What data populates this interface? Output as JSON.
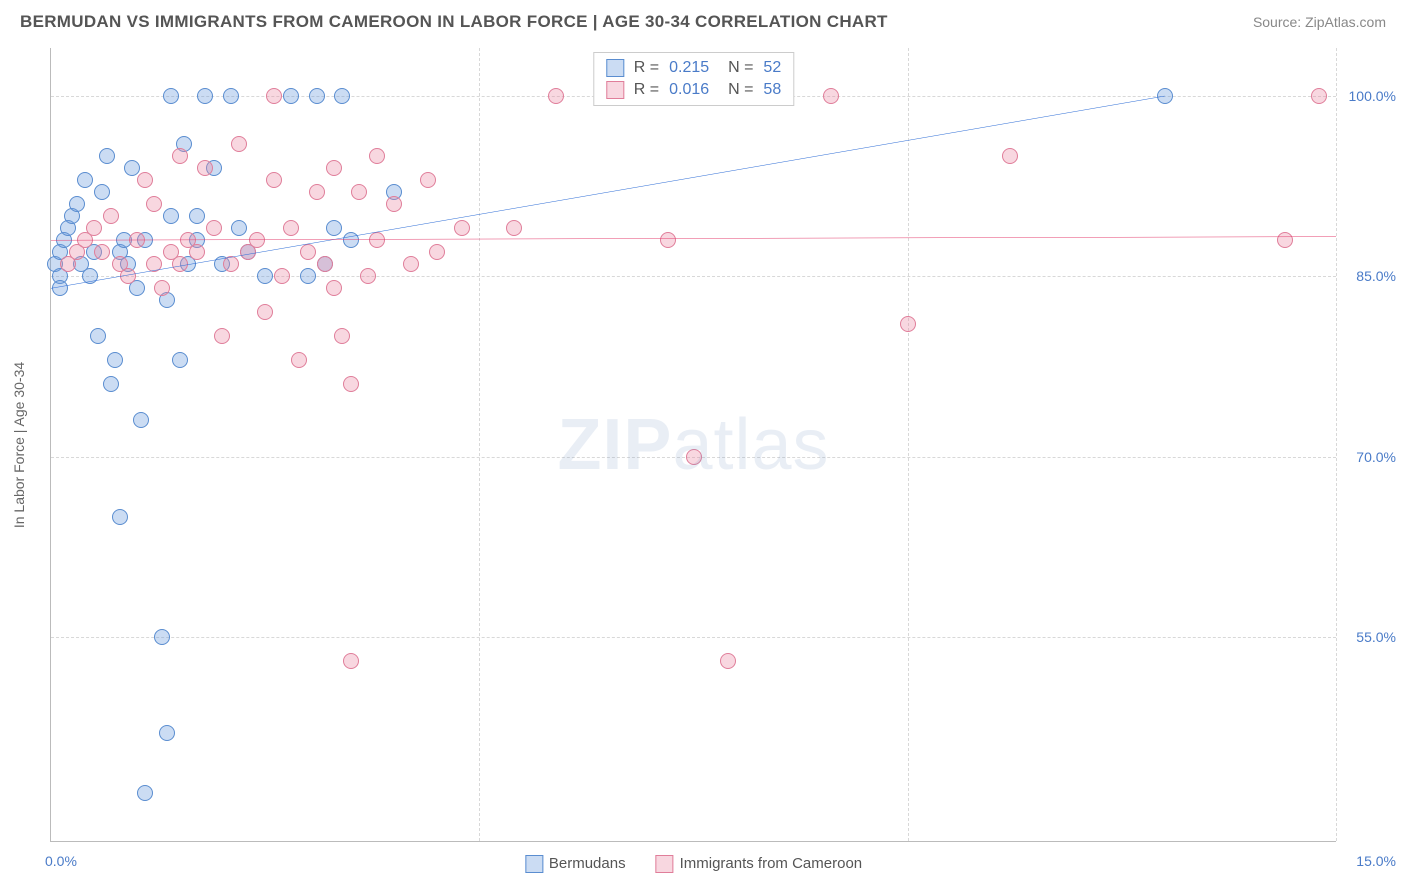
{
  "header": {
    "title": "BERMUDAN VS IMMIGRANTS FROM CAMEROON IN LABOR FORCE | AGE 30-34 CORRELATION CHART",
    "source": "Source: ZipAtlas.com"
  },
  "chart": {
    "type": "scatter",
    "yaxis_label": "In Labor Force | Age 30-34",
    "watermark": "ZIPatlas",
    "background_color": "#ffffff",
    "grid_color": "#d8d8d8",
    "axis_color": "#bbbbbb",
    "tick_label_color": "#4a7bc8",
    "xlim": [
      0,
      15
    ],
    "ylim": [
      38,
      104
    ],
    "xticks": [
      {
        "value": 0,
        "label": "0.0%"
      },
      {
        "value": 5,
        "label": ""
      },
      {
        "value": 10,
        "label": ""
      },
      {
        "value": 15,
        "label": "15.0%"
      }
    ],
    "yticks": [
      {
        "value": 100,
        "label": "100.0%"
      },
      {
        "value": 85,
        "label": "85.0%"
      },
      {
        "value": 70,
        "label": "70.0%"
      },
      {
        "value": 55,
        "label": "55.0%"
      }
    ],
    "series": [
      {
        "name": "Bermudans",
        "fill_color": "rgba(105,155,220,0.35)",
        "stroke_color": "#5a8dd0",
        "line_color": "#2b6bd6",
        "line_width": 2,
        "marker_radius": 8,
        "R": "0.215",
        "N": "52",
        "regression": {
          "x1": 0,
          "y1": 84,
          "x2": 13.0,
          "y2": 100
        },
        "points": [
          {
            "x": 0.05,
            "y": 86
          },
          {
            "x": 0.1,
            "y": 87
          },
          {
            "x": 0.15,
            "y": 88
          },
          {
            "x": 0.1,
            "y": 85
          },
          {
            "x": 0.1,
            "y": 84
          },
          {
            "x": 0.2,
            "y": 89
          },
          {
            "x": 0.25,
            "y": 90
          },
          {
            "x": 0.3,
            "y": 91
          },
          {
            "x": 0.35,
            "y": 86
          },
          {
            "x": 0.4,
            "y": 93
          },
          {
            "x": 0.45,
            "y": 85
          },
          {
            "x": 0.5,
            "y": 87
          },
          {
            "x": 0.55,
            "y": 80
          },
          {
            "x": 0.6,
            "y": 92
          },
          {
            "x": 0.65,
            "y": 95
          },
          {
            "x": 0.7,
            "y": 76
          },
          {
            "x": 0.75,
            "y": 78
          },
          {
            "x": 0.8,
            "y": 87
          },
          {
            "x": 0.8,
            "y": 65
          },
          {
            "x": 0.85,
            "y": 88
          },
          {
            "x": 0.9,
            "y": 86
          },
          {
            "x": 0.95,
            "y": 94
          },
          {
            "x": 1.0,
            "y": 84
          },
          {
            "x": 1.05,
            "y": 73
          },
          {
            "x": 1.1,
            "y": 88
          },
          {
            "x": 1.1,
            "y": 42
          },
          {
            "x": 1.3,
            "y": 55
          },
          {
            "x": 1.35,
            "y": 83
          },
          {
            "x": 1.35,
            "y": 47
          },
          {
            "x": 1.4,
            "y": 90
          },
          {
            "x": 1.4,
            "y": 100
          },
          {
            "x": 1.5,
            "y": 78
          },
          {
            "x": 1.55,
            "y": 96
          },
          {
            "x": 1.6,
            "y": 86
          },
          {
            "x": 1.7,
            "y": 88
          },
          {
            "x": 1.7,
            "y": 90
          },
          {
            "x": 1.8,
            "y": 100
          },
          {
            "x": 1.9,
            "y": 94
          },
          {
            "x": 2.0,
            "y": 86
          },
          {
            "x": 2.1,
            "y": 100
          },
          {
            "x": 2.2,
            "y": 89
          },
          {
            "x": 2.3,
            "y": 87
          },
          {
            "x": 2.5,
            "y": 85
          },
          {
            "x": 2.8,
            "y": 100
          },
          {
            "x": 3.0,
            "y": 85
          },
          {
            "x": 3.1,
            "y": 100
          },
          {
            "x": 3.2,
            "y": 86
          },
          {
            "x": 3.3,
            "y": 89
          },
          {
            "x": 3.4,
            "y": 100
          },
          {
            "x": 3.5,
            "y": 88
          },
          {
            "x": 4.0,
            "y": 92
          },
          {
            "x": 13.0,
            "y": 100
          }
        ]
      },
      {
        "name": "Immigrants from Cameroon",
        "fill_color": "rgba(235,140,165,0.35)",
        "stroke_color": "#e07e9a",
        "line_color": "#e43f6f",
        "line_width": 2,
        "marker_radius": 8,
        "R": "0.016",
        "N": "58",
        "regression": {
          "x1": 0,
          "y1": 88,
          "x2": 15,
          "y2": 88.3
        },
        "points": [
          {
            "x": 0.2,
            "y": 86
          },
          {
            "x": 0.3,
            "y": 87
          },
          {
            "x": 0.4,
            "y": 88
          },
          {
            "x": 0.5,
            "y": 89
          },
          {
            "x": 0.6,
            "y": 87
          },
          {
            "x": 0.7,
            "y": 90
          },
          {
            "x": 0.8,
            "y": 86
          },
          {
            "x": 0.9,
            "y": 85
          },
          {
            "x": 1.0,
            "y": 88
          },
          {
            "x": 1.1,
            "y": 93
          },
          {
            "x": 1.2,
            "y": 86
          },
          {
            "x": 1.2,
            "y": 91
          },
          {
            "x": 1.3,
            "y": 84
          },
          {
            "x": 1.4,
            "y": 87
          },
          {
            "x": 1.5,
            "y": 86
          },
          {
            "x": 1.5,
            "y": 95
          },
          {
            "x": 1.6,
            "y": 88
          },
          {
            "x": 1.7,
            "y": 87
          },
          {
            "x": 1.8,
            "y": 94
          },
          {
            "x": 1.9,
            "y": 89
          },
          {
            "x": 2.0,
            "y": 80
          },
          {
            "x": 2.1,
            "y": 86
          },
          {
            "x": 2.2,
            "y": 96
          },
          {
            "x": 2.3,
            "y": 87
          },
          {
            "x": 2.4,
            "y": 88
          },
          {
            "x": 2.5,
            "y": 82
          },
          {
            "x": 2.6,
            "y": 93
          },
          {
            "x": 2.6,
            "y": 100
          },
          {
            "x": 2.7,
            "y": 85
          },
          {
            "x": 2.8,
            "y": 89
          },
          {
            "x": 2.9,
            "y": 78
          },
          {
            "x": 3.0,
            "y": 87
          },
          {
            "x": 3.1,
            "y": 92
          },
          {
            "x": 3.2,
            "y": 86
          },
          {
            "x": 3.3,
            "y": 84
          },
          {
            "x": 3.3,
            "y": 94
          },
          {
            "x": 3.4,
            "y": 80
          },
          {
            "x": 3.5,
            "y": 76
          },
          {
            "x": 3.5,
            "y": 53
          },
          {
            "x": 3.6,
            "y": 92
          },
          {
            "x": 3.7,
            "y": 85
          },
          {
            "x": 3.8,
            "y": 95
          },
          {
            "x": 3.8,
            "y": 88
          },
          {
            "x": 4.0,
            "y": 91
          },
          {
            "x": 4.2,
            "y": 86
          },
          {
            "x": 4.4,
            "y": 93
          },
          {
            "x": 4.5,
            "y": 87
          },
          {
            "x": 4.8,
            "y": 89
          },
          {
            "x": 5.4,
            "y": 89
          },
          {
            "x": 5.9,
            "y": 100
          },
          {
            "x": 7.2,
            "y": 88
          },
          {
            "x": 7.5,
            "y": 70
          },
          {
            "x": 7.9,
            "y": 53
          },
          {
            "x": 9.1,
            "y": 100
          },
          {
            "x": 10.0,
            "y": 81
          },
          {
            "x": 11.2,
            "y": 95
          },
          {
            "x": 14.4,
            "y": 88
          },
          {
            "x": 14.8,
            "y": 100
          }
        ]
      }
    ],
    "legend_bottom": [
      {
        "label": "Bermudans",
        "fill": "rgba(105,155,220,0.35)",
        "stroke": "#5a8dd0"
      },
      {
        "label": "Immigrants from Cameroon",
        "fill": "rgba(235,140,165,0.35)",
        "stroke": "#e07e9a"
      }
    ]
  }
}
